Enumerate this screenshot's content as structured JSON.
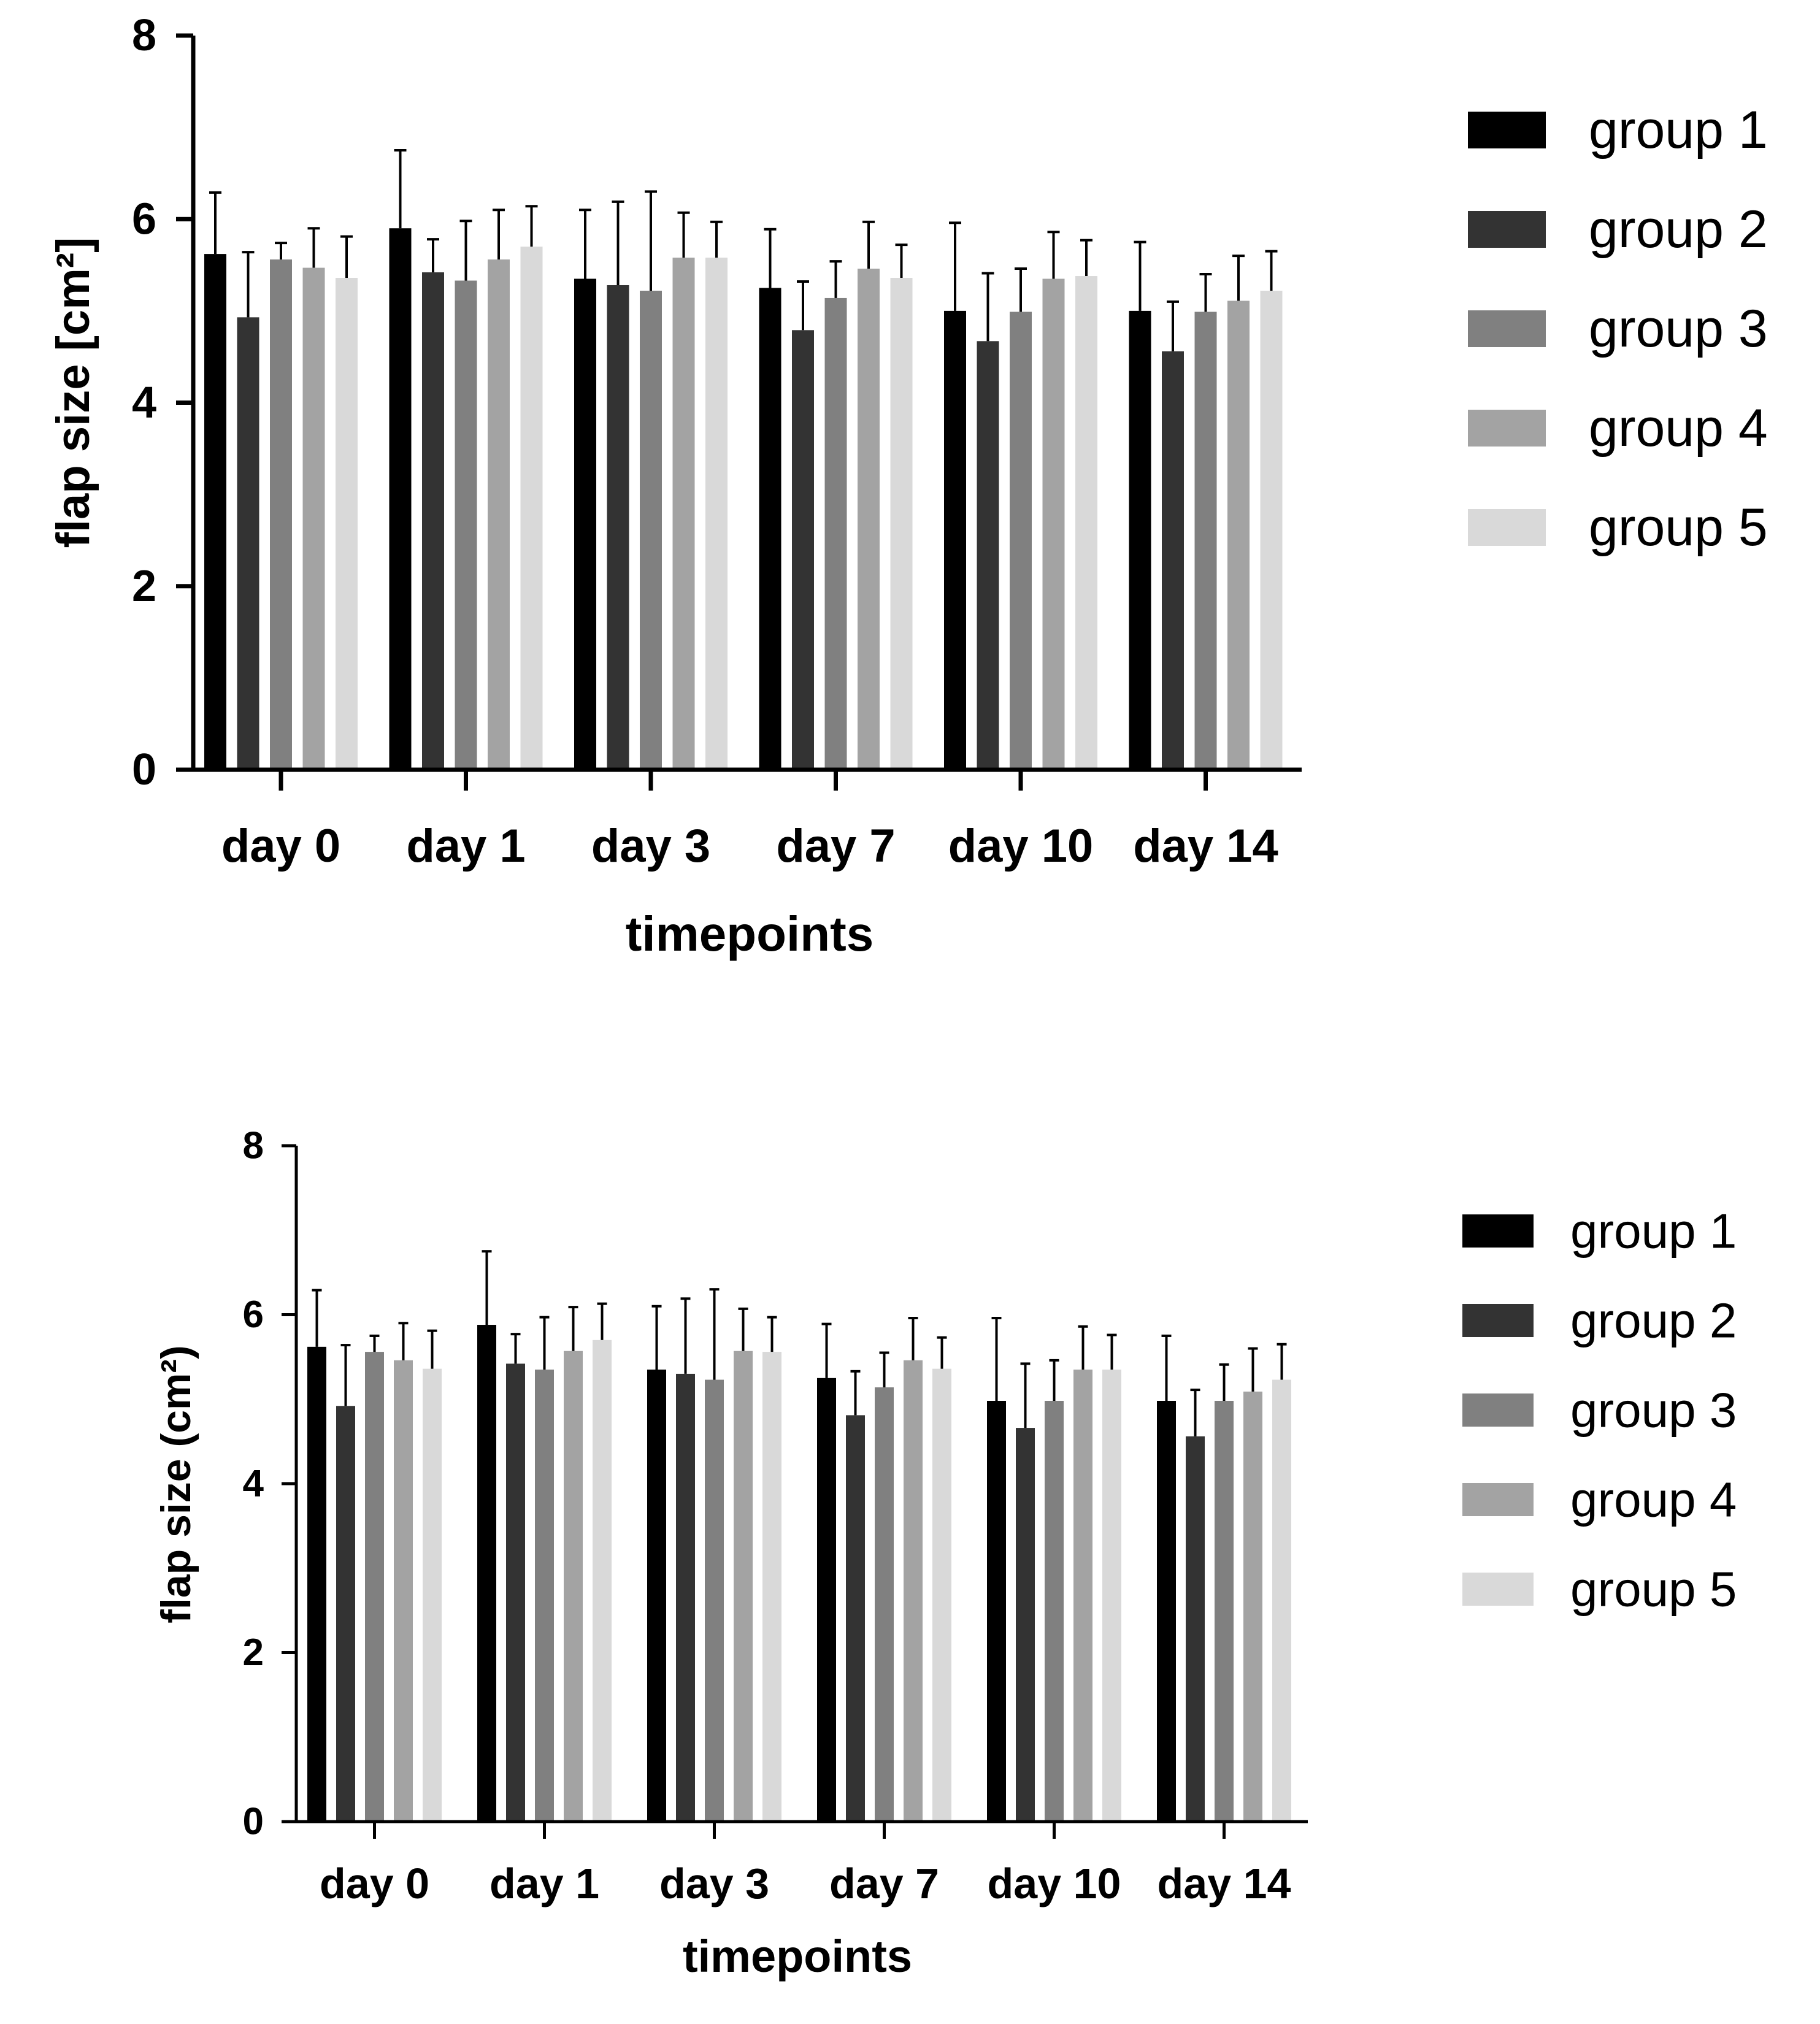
{
  "colors": {
    "group1": "#000000",
    "group2": "#333333",
    "group3": "#808080",
    "group4": "#a3a3a3",
    "group5": "#d9d9d9",
    "axis": "#000000",
    "background": "#ffffff"
  },
  "chart_data": [
    {
      "type": "bar",
      "title": "",
      "xlabel": "timepoints",
      "ylabel": "flap size [cm²]",
      "ylim": [
        0,
        8
      ],
      "yticks": [
        "0",
        "2",
        "4",
        "6",
        "8"
      ],
      "categories": [
        "day 0",
        "day 1",
        "day 3",
        "day 7",
        "day 10",
        "day 14"
      ],
      "legend_position": "right",
      "error_bars": "one-sided upper",
      "series": [
        {
          "name": "group 1",
          "values": [
            5.62,
            5.9,
            5.35,
            5.25,
            5.0,
            5.0
          ],
          "errors": [
            0.67,
            0.85,
            0.75,
            0.64,
            0.96,
            0.75
          ]
        },
        {
          "name": "group 2",
          "values": [
            4.93,
            5.42,
            5.28,
            4.79,
            4.67,
            4.56
          ],
          "errors": [
            0.71,
            0.36,
            0.91,
            0.53,
            0.74,
            0.54
          ]
        },
        {
          "name": "group 3",
          "values": [
            5.56,
            5.33,
            5.22,
            5.14,
            4.99,
            4.99
          ],
          "errors": [
            0.18,
            0.65,
            1.08,
            0.4,
            0.47,
            0.41
          ]
        },
        {
          "name": "group 4",
          "values": [
            5.47,
            5.56,
            5.58,
            5.46,
            5.35,
            5.11
          ],
          "errors": [
            0.43,
            0.54,
            0.49,
            0.51,
            0.51,
            0.49
          ]
        },
        {
          "name": "group 5",
          "values": [
            5.36,
            5.7,
            5.58,
            5.36,
            5.38,
            5.22
          ],
          "errors": [
            0.45,
            0.44,
            0.39,
            0.36,
            0.39,
            0.43
          ]
        }
      ]
    },
    {
      "type": "bar",
      "title": "",
      "xlabel": "timepoints",
      "ylabel": "flap size (cm²)",
      "ylim": [
        0,
        8
      ],
      "yticks": [
        "0",
        "2",
        "4",
        "6",
        "8"
      ],
      "categories": [
        "day 0",
        "day 1",
        "day 3",
        "day 7",
        "day 10",
        "day 14"
      ],
      "legend_position": "right",
      "error_bars": "one-sided upper",
      "series": [
        {
          "name": "group 1",
          "values": [
            5.62,
            5.88,
            5.35,
            5.25,
            4.98,
            4.98
          ],
          "errors": [
            0.67,
            0.87,
            0.75,
            0.64,
            0.98,
            0.77
          ]
        },
        {
          "name": "group 2",
          "values": [
            4.92,
            5.42,
            5.3,
            4.81,
            4.66,
            4.56
          ],
          "errors": [
            0.72,
            0.35,
            0.89,
            0.52,
            0.76,
            0.55
          ]
        },
        {
          "name": "group 3",
          "values": [
            5.56,
            5.35,
            5.23,
            5.14,
            4.98,
            4.98
          ],
          "errors": [
            0.19,
            0.62,
            1.07,
            0.41,
            0.48,
            0.43
          ]
        },
        {
          "name": "group 4",
          "values": [
            5.46,
            5.57,
            5.57,
            5.46,
            5.35,
            5.09
          ],
          "errors": [
            0.44,
            0.52,
            0.5,
            0.5,
            0.51,
            0.51
          ]
        },
        {
          "name": "group 5",
          "values": [
            5.36,
            5.7,
            5.56,
            5.36,
            5.35,
            5.23
          ],
          "errors": [
            0.45,
            0.43,
            0.41,
            0.37,
            0.41,
            0.42
          ]
        }
      ]
    }
  ]
}
